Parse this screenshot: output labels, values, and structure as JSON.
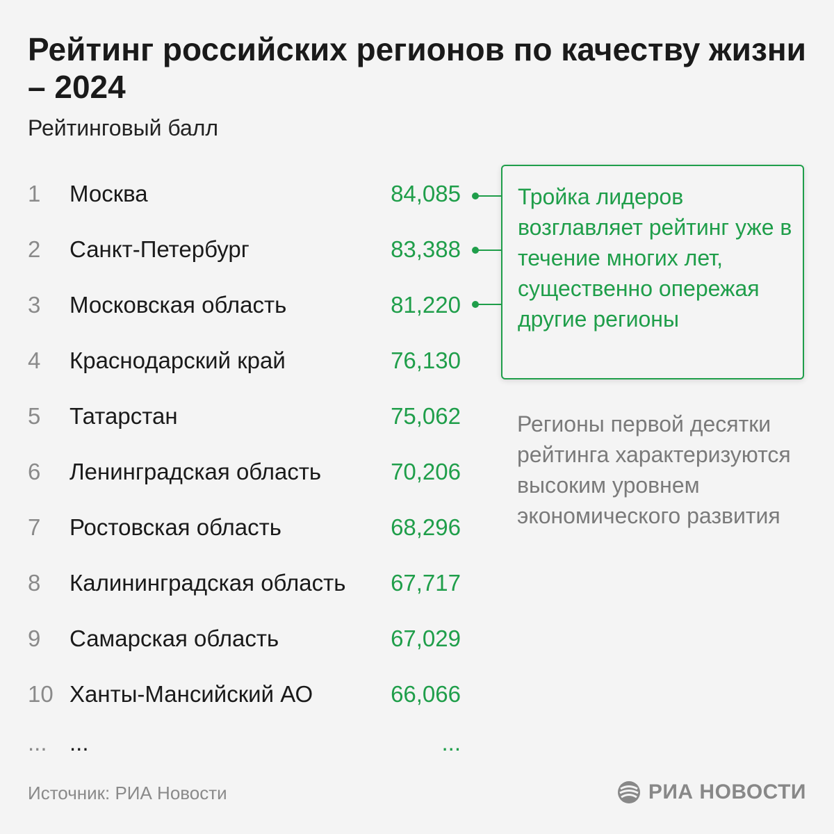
{
  "header": {
    "title": "Рейтинг российских регионов по качеству жизни – 2024",
    "subtitle": "Рейтинговый балл"
  },
  "chart_data": {
    "type": "table",
    "title": "Рейтинг российских регионов по качеству жизни – 2024",
    "subtitle": "Рейтинговый балл",
    "rows": [
      {
        "rank": "1",
        "region": "Москва",
        "score": "84,085"
      },
      {
        "rank": "2",
        "region": "Санкт-Петербург",
        "score": "83,388"
      },
      {
        "rank": "3",
        "region": "Московская область",
        "score": "81,220"
      },
      {
        "rank": "4",
        "region": "Краснодарский край",
        "score": "76,130"
      },
      {
        "rank": "5",
        "region": "Татарстан",
        "score": "75,062"
      },
      {
        "rank": "6",
        "region": "Ленинградская область",
        "score": "70,206"
      },
      {
        "rank": "7",
        "region": "Ростовская область",
        "score": "68,296"
      },
      {
        "rank": "8",
        "region": "Калининградская область",
        "score": "67,717"
      },
      {
        "rank": "9",
        "region": "Самарская область",
        "score": "67,029"
      },
      {
        "rank": "10",
        "region": "Ханты-Мансийский АО",
        "score": "66,066"
      }
    ],
    "continuation": {
      "rank": "...",
      "region": "...",
      "score": "..."
    },
    "annotations": [
      "Тройка лидеров возглавляет рейтинг уже в течение многих лет, существенно опережая другие регионы",
      "Регионы первой десятки рейтинга характеризуются высоким уровнем экономического развития"
    ]
  },
  "callout": {
    "text": "Тройка лидеров возглавляет рейтинг уже в течение многих лет, существенно опережая другие регионы"
  },
  "note": {
    "text": "Регионы первой десятки рейтинга характеризуются высоким уровнем экономического развития"
  },
  "footer": {
    "source": "Источник: РИА Новости",
    "logo_text": "РИА НОВОСТИ",
    "logo_icon": "ria-novosti-logo-icon"
  },
  "colors": {
    "accent": "#1f9e4a",
    "rank": "#8a8a8a",
    "note": "#7a7a7a",
    "background": "#f4f4f4"
  }
}
